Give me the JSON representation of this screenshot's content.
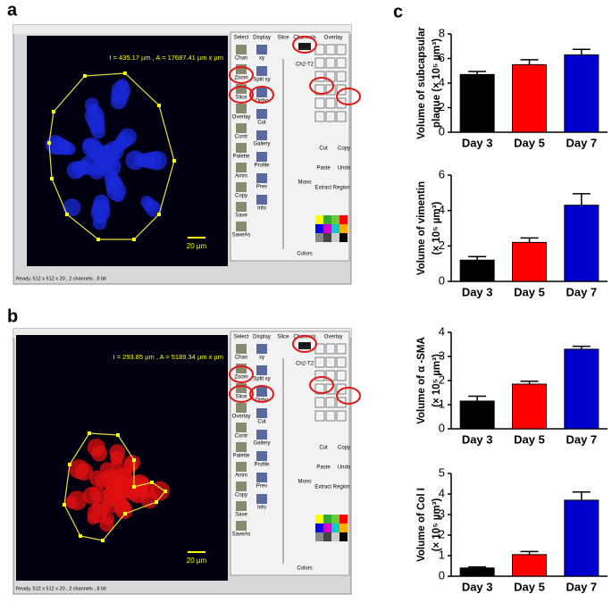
{
  "panel_labels": [
    "a",
    "b",
    "c"
  ],
  "screenshots": [
    {
      "measure": "I = 435.17 µm , A = 17687.41 µm x µm",
      "scale": "20 µm",
      "status": "Ready, 512 x 512 x 20 , 2 channels , 8 bit"
    },
    {
      "measure": "I = 293.85 µm , A = 5189.34 µm x µm",
      "scale": "20 µm",
      "status": "Ready, 512 x 512 x 20 , 2 channels , 8 bit"
    }
  ],
  "toolbar": {
    "headers": [
      "Select",
      "Display",
      "Slice",
      "Channels",
      "Overlay"
    ],
    "select_tools": [
      "Chan",
      "Zoom",
      "Slice",
      "Overlay",
      "Contr",
      "Palette",
      "Anim",
      "Copy",
      "Save",
      "SaveAs"
    ],
    "display_tools": [
      "xy",
      "Split xy",
      "Ortho",
      "Cut",
      "Gallery",
      "Profile",
      "Prev",
      "Info"
    ],
    "overlay_tools": [
      "Cut",
      "Copy",
      "Paste",
      "Undo",
      "Extract Region"
    ],
    "channel_tools": [
      "OFF",
      "Ch2-T2",
      "Mono",
      "Colors"
    ]
  },
  "chart_data": [
    {
      "type": "bar",
      "ylabel": [
        "Volume of subcapsular",
        "plaque (× 10⁵ µm³)"
      ],
      "categories": [
        "Day 3",
        "Day 5",
        "Day 7"
      ],
      "values": [
        4.7,
        5.5,
        6.3
      ],
      "errors": [
        0.25,
        0.4,
        0.45
      ],
      "colors": [
        "#000000",
        "#ff0000",
        "#0000cc"
      ],
      "ylim": [
        0,
        8
      ],
      "yticks": [
        0,
        2,
        4,
        6,
        8
      ]
    },
    {
      "type": "bar",
      "ylabel": [
        "Volume of vimentin",
        "(× 10⁵ µm³)"
      ],
      "categories": [
        "Day 3",
        "Day 5",
        "Day 7"
      ],
      "values": [
        1.2,
        2.2,
        4.3
      ],
      "errors": [
        0.2,
        0.25,
        0.65
      ],
      "colors": [
        "#000000",
        "#ff0000",
        "#0000cc"
      ],
      "ylim": [
        0,
        6
      ],
      "yticks": [
        0,
        2,
        4,
        6
      ]
    },
    {
      "type": "bar",
      "ylabel": [
        "Volume of α -SMA",
        "(× 10⁵ µm³)"
      ],
      "categories": [
        "Day 3",
        "Day 5",
        "Day 7"
      ],
      "values": [
        1.15,
        1.85,
        3.3
      ],
      "errors": [
        0.2,
        0.12,
        0.12
      ],
      "colors": [
        "#000000",
        "#ff0000",
        "#0000cc"
      ],
      "ylim": [
        0,
        4
      ],
      "yticks": [
        0,
        1,
        2,
        3,
        4
      ]
    },
    {
      "type": "bar",
      "ylabel": [
        "Volume of Col I",
        "(× 10⁵ µm³)"
      ],
      "categories": [
        "Day 3",
        "Day 5",
        "Day 7"
      ],
      "values": [
        0.4,
        1.05,
        3.7
      ],
      "errors": [
        0.05,
        0.15,
        0.4
      ],
      "colors": [
        "#000000",
        "#ff0000",
        "#0000cc"
      ],
      "ylim": [
        0,
        5
      ],
      "yticks": [
        0,
        1,
        2,
        3,
        4,
        5
      ]
    }
  ]
}
